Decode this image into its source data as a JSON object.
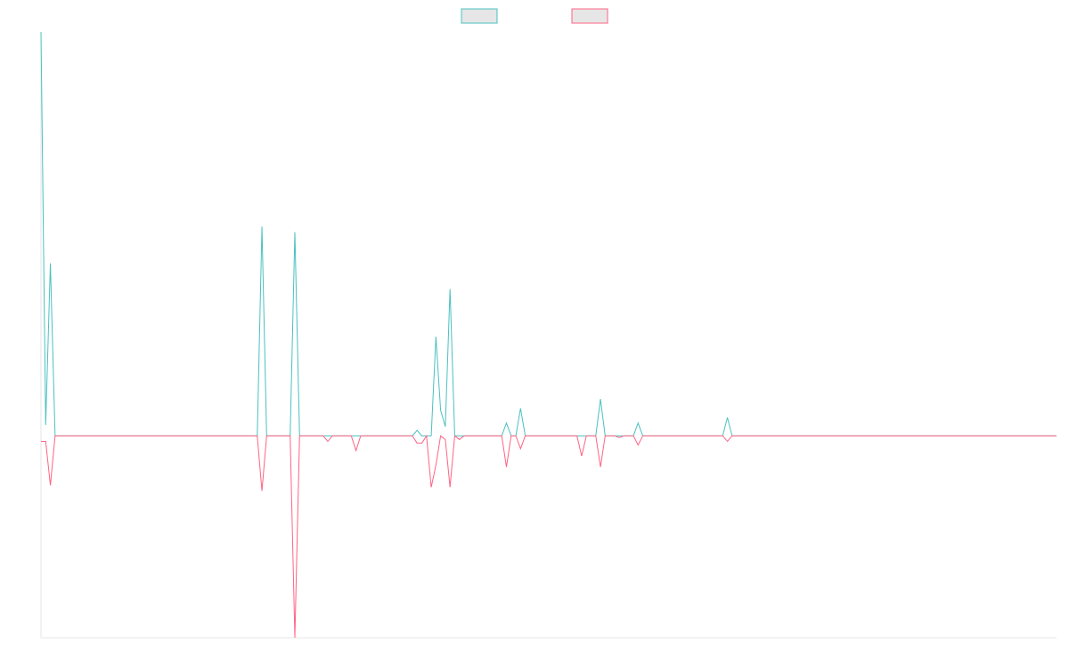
{
  "chart_data": {
    "type": "line",
    "x_count": 217,
    "ylim": [
      -550,
      1100
    ],
    "grid": false,
    "legend_placement": "top-center",
    "series": [
      {
        "color": "#4bc0c0",
        "points": [
          [
            0,
            1100
          ],
          [
            1,
            30
          ],
          [
            2,
            470
          ],
          [
            3,
            0
          ],
          [
            46,
            0
          ],
          [
            47,
            570
          ],
          [
            48,
            0
          ],
          [
            53,
            0
          ],
          [
            54,
            555
          ],
          [
            55,
            0
          ],
          [
            60,
            0
          ],
          [
            61,
            0
          ],
          [
            62,
            0
          ],
          [
            66,
            0
          ],
          [
            67,
            0
          ],
          [
            68,
            0
          ],
          [
            79,
            0
          ],
          [
            80,
            15
          ],
          [
            81,
            0
          ],
          [
            82,
            0
          ],
          [
            83,
            0
          ],
          [
            84,
            270
          ],
          [
            85,
            70
          ],
          [
            86,
            25
          ],
          [
            87,
            400
          ],
          [
            88,
            0
          ],
          [
            89,
            0
          ],
          [
            90,
            0
          ],
          [
            98,
            0
          ],
          [
            99,
            35
          ],
          [
            100,
            0
          ],
          [
            101,
            0
          ],
          [
            102,
            75
          ],
          [
            103,
            0
          ],
          [
            114,
            0
          ],
          [
            115,
            0
          ],
          [
            116,
            0
          ],
          [
            118,
            0
          ],
          [
            119,
            100
          ],
          [
            120,
            0
          ],
          [
            122,
            0
          ],
          [
            123,
            0
          ],
          [
            124,
            0
          ],
          [
            125,
            0
          ],
          [
            126,
            0
          ],
          [
            127,
            35
          ],
          [
            128,
            0
          ],
          [
            129,
            0
          ],
          [
            130,
            0
          ],
          [
            131,
            0
          ],
          [
            145,
            0
          ],
          [
            146,
            50
          ],
          [
            147,
            0
          ],
          [
            216,
            0
          ]
        ]
      },
      {
        "color": "#ff6384",
        "points": [
          [
            0,
            -15
          ],
          [
            1,
            -15
          ],
          [
            2,
            -135
          ],
          [
            3,
            0
          ],
          [
            46,
            0
          ],
          [
            47,
            -150
          ],
          [
            48,
            0
          ],
          [
            53,
            0
          ],
          [
            54,
            -550
          ],
          [
            55,
            0
          ],
          [
            60,
            0
          ],
          [
            61,
            -15
          ],
          [
            62,
            0
          ],
          [
            66,
            0
          ],
          [
            67,
            -40
          ],
          [
            68,
            0
          ],
          [
            79,
            0
          ],
          [
            80,
            -20
          ],
          [
            81,
            -20
          ],
          [
            82,
            0
          ],
          [
            83,
            -140
          ],
          [
            84,
            -80
          ],
          [
            85,
            0
          ],
          [
            86,
            -10
          ],
          [
            87,
            -140
          ],
          [
            88,
            0
          ],
          [
            89,
            -10
          ],
          [
            90,
            0
          ],
          [
            98,
            0
          ],
          [
            99,
            -85
          ],
          [
            100,
            0
          ],
          [
            101,
            0
          ],
          [
            102,
            -35
          ],
          [
            103,
            0
          ],
          [
            114,
            0
          ],
          [
            115,
            -55
          ],
          [
            116,
            0
          ],
          [
            118,
            0
          ],
          [
            119,
            -85
          ],
          [
            120,
            0
          ],
          [
            122,
            0
          ],
          [
            123,
            -5
          ],
          [
            124,
            0
          ],
          [
            125,
            0
          ],
          [
            126,
            0
          ],
          [
            127,
            -25
          ],
          [
            128,
            0
          ],
          [
            129,
            0
          ],
          [
            130,
            0
          ],
          [
            131,
            0
          ],
          [
            145,
            0
          ],
          [
            146,
            -15
          ],
          [
            147,
            0
          ],
          [
            216,
            0
          ]
        ]
      }
    ]
  }
}
